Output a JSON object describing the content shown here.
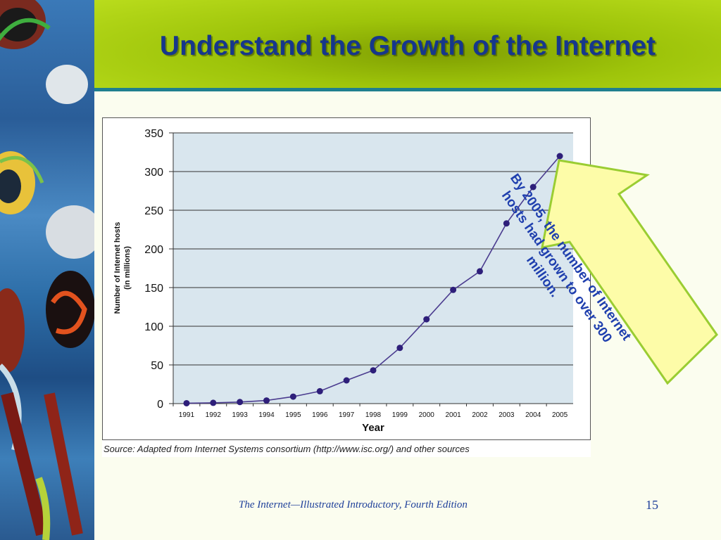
{
  "slide": {
    "title": "Understand the Growth of the Internet",
    "footer": "The Internet—Illustrated Introductory, Fourth Edition",
    "page_number": "15",
    "callout_text": "By 2005, the number of Internet hosts had grown to over 300 million.",
    "source": "Source: Adapted from Internet Systems consortium (http://www.isc.org/) and other sources"
  },
  "colors": {
    "header": "#9ec40a",
    "title": "#16378c",
    "plot_bg": "#d9e6ee",
    "line": "#4b3c8f",
    "marker": "#2e1f7a",
    "callout_fill": "#fdfca8",
    "callout_border": "#9acd32",
    "callout_text": "#1f3fae"
  },
  "chart_data": {
    "type": "line",
    "xlabel": "Year",
    "ylabel": "Number of Internet hosts (in millions)",
    "categories": [
      "1991",
      "1992",
      "1993",
      "1994",
      "1995",
      "1996",
      "1997",
      "1998",
      "1999",
      "2000",
      "2001",
      "2002",
      "2003",
      "2004",
      "2005"
    ],
    "values": [
      0.5,
      1,
      2,
      4,
      9,
      16,
      30,
      43,
      72,
      109,
      147,
      171,
      233,
      280,
      320
    ],
    "yticks": [
      0,
      50,
      100,
      150,
      200,
      250,
      300,
      350
    ],
    "ylim": [
      0,
      350
    ],
    "grid": "horizontal"
  }
}
